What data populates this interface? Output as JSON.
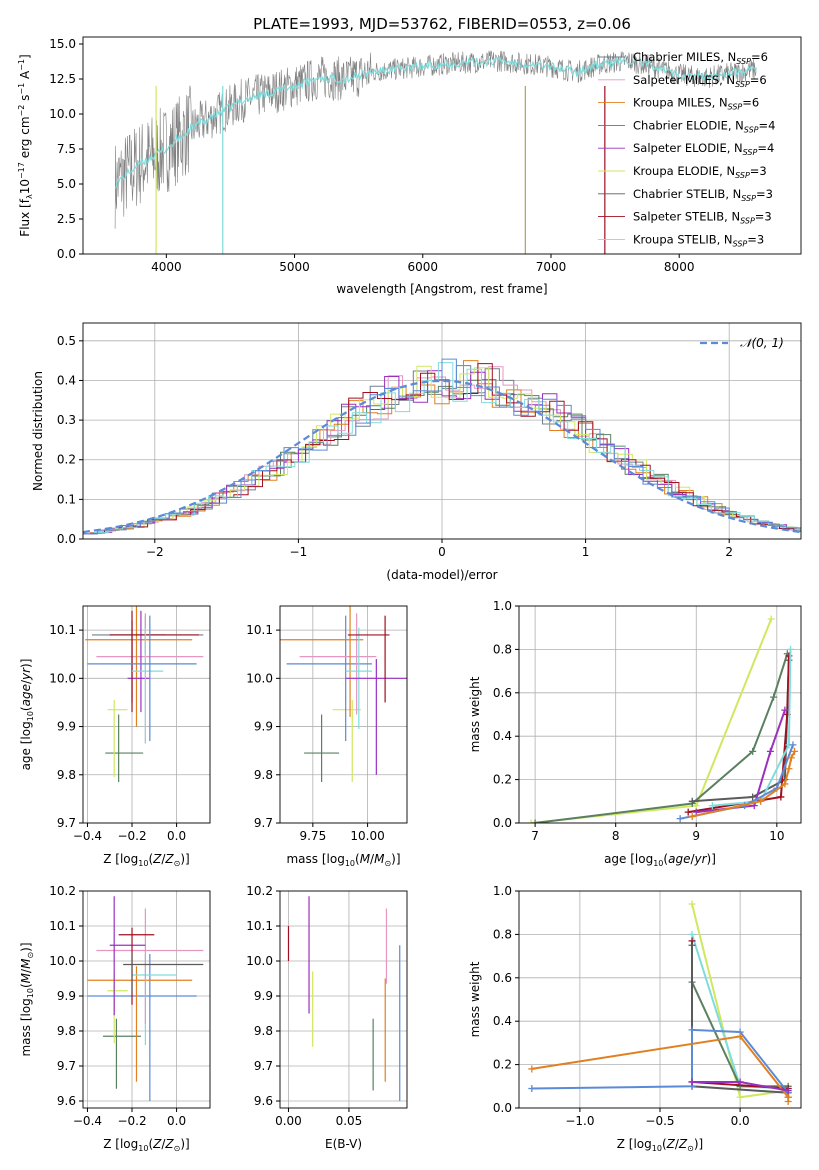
{
  "title": "PLATE=1993, MJD=53762, FIBERID=0553, z=0.06",
  "colors": {
    "Chabrier MILES": "#708090",
    "Salpeter MILES": "#e597c0",
    "Kroupa MILES": "#e08020",
    "Chabrier ELODIE": "#5a8060",
    "Salpeter ELODIE": "#9a30c0",
    "Kroupa ELODIE": "#cfe860",
    "Chabrier STELIB": "#5b5b5b",
    "Salpeter STELIB": "#a01020",
    "Kroupa STELIB": "#80dcdc",
    "spectrum": "#808080",
    "normal": "#5b8ad6"
  },
  "legend_spectrum": [
    {
      "label": "Chabrier MILES, N",
      "sub": "SSP",
      "tail": "=6",
      "color": "#708090"
    },
    {
      "label": "Salpeter MILES, N",
      "sub": "SSP",
      "tail": "=6",
      "color": "#e597c0"
    },
    {
      "label": "Kroupa MILES, N",
      "sub": "SSP",
      "tail": "=6",
      "color": "#e08020"
    },
    {
      "label": "Chabrier ELODIE, N",
      "sub": "SSP",
      "tail": "=4",
      "color": "#5a8060"
    },
    {
      "label": "Salpeter ELODIE, N",
      "sub": "SSP",
      "tail": "=4",
      "color": "#9a30c0"
    },
    {
      "label": "Kroupa ELODIE, N",
      "sub": "SSP",
      "tail": "=3",
      "color": "#cfe860"
    },
    {
      "label": "Chabrier STELIB, N",
      "sub": "SSP",
      "tail": "=3",
      "color": "#5b5b5b"
    },
    {
      "label": "Salpeter STELIB, N",
      "sub": "SSP",
      "tail": "=3",
      "color": "#a01020"
    },
    {
      "label": "Kroupa STELIB, N",
      "sub": "SSP",
      "tail": "=3",
      "color": "#80dcdc"
    }
  ],
  "chart_data": [
    {
      "id": "spectrum",
      "type": "line",
      "title": "PLATE=1993, MJD=53762, FIBERID=0553, z=0.06",
      "xlabel": "wavelength [Angstrom, rest frame]",
      "ylabel": "Flux [f",
      "ylabel_full": "Flux [f_λ 10^-17 erg cm^-2 s^-1 A^-1]",
      "xlim": [
        3350,
        8950
      ],
      "ylim": [
        0,
        15.5
      ],
      "xticks": [
        4000,
        5000,
        6000,
        7000,
        8000
      ],
      "yticks": [
        0.0,
        2.5,
        5.0,
        7.5,
        10.0,
        12.5,
        15.0
      ],
      "series": [
        {
          "name": "spectrum",
          "color": "#808080",
          "x": [
            3600,
            3800,
            4000,
            4200,
            4400,
            4600,
            4800,
            5000,
            5200,
            5400,
            5600,
            5800,
            6000,
            6200,
            6400,
            6600,
            6800,
            7000,
            7200,
            7400,
            7600,
            7800,
            8000,
            8200,
            8400,
            8600
          ],
          "y": [
            5.0,
            6.5,
            7.5,
            9.0,
            10.0,
            11.0,
            11.5,
            12.0,
            12.6,
            12.5,
            13.0,
            13.2,
            13.4,
            13.6,
            13.7,
            13.8,
            13.6,
            13.4,
            13.0,
            13.6,
            13.8,
            13.4,
            12.8,
            12.6,
            12.9,
            13.2
          ]
        }
      ]
    },
    {
      "id": "residuals",
      "type": "line",
      "xlabel": "(data-model)/error",
      "ylabel": "Normed distribution",
      "xlim": [
        -2.5,
        2.5
      ],
      "ylim": [
        0,
        0.545
      ],
      "xticks": [
        -2,
        -1,
        0,
        1,
        2
      ],
      "yticks": [
        0.0,
        0.1,
        0.2,
        0.3,
        0.4,
        0.5
      ],
      "series": [
        {
          "name": "N(0,1)",
          "legend": "𝒩(0, 1)",
          "type": "gaussian",
          "mu": 0,
          "sigma": 1
        }
      ]
    },
    {
      "id": "age_vs_Z",
      "type": "errorbar",
      "xlabel": "Z [log",
      "ylabel": "age  [log",
      "xlim": [
        -0.42,
        0.15
      ],
      "ylim": [
        9.7,
        10.15
      ],
      "xticks": [
        -0.4,
        -0.2,
        0.0
      ],
      "yticks": [
        9.7,
        9.8,
        9.9,
        10.0,
        10.1
      ],
      "points": [
        {
          "name": "Chabrier MILES",
          "x": -0.14,
          "xerr": [
            0.24,
            0.26
          ],
          "y": 10.09,
          "yerr": [
            0.04,
            0.04
          ]
        },
        {
          "name": "Salpeter MILES",
          "x": -0.14,
          "xerr": [
            0.22,
            0.26
          ],
          "y": 10.045,
          "yerr": [
            0.18,
            0.09
          ]
        },
        {
          "name": "Kroupa MILES",
          "x": -0.18,
          "xerr": [
            0.23,
            0.25
          ],
          "y": 10.08,
          "yerr": [
            0.18,
            0.07
          ]
        },
        {
          "name": "Chabrier ELODIE",
          "x": -0.26,
          "xerr": [
            0.06,
            0.11
          ],
          "y": 9.845,
          "yerr": [
            0.06,
            0.08
          ]
        },
        {
          "name": "Salpeter ELODIE",
          "x": -0.16,
          "xerr": [
            0.06,
            0.04
          ],
          "y": 10.0,
          "yerr": [
            0.07,
            0.14
          ]
        },
        {
          "name": "Kroupa ELODIE",
          "x": -0.28,
          "xerr": [
            0.03,
            0.06
          ],
          "y": 9.935,
          "yerr": [
            0.14,
            0.02
          ]
        },
        {
          "name": "Chabrier STELIB",
          "x": -0.2,
          "xerr": [
            0.1,
            0.15
          ],
          "y": 10.09,
          "yerr": [
            0.14,
            0.03
          ]
        },
        {
          "name": "Salpeter STELIB",
          "x": -0.2,
          "xerr": [
            0.1,
            0.3
          ],
          "y": 10.09,
          "yerr": [
            0.16,
            0.05
          ]
        },
        {
          "name": "Kroupa STELIB",
          "x": -0.14,
          "xerr": [
            0.06,
            0.08
          ],
          "y": 10.015,
          "yerr": [
            0.15,
            0.09
          ]
        },
        {
          "name": "blue",
          "x": -0.12,
          "xerr": [
            0.28,
            0.21
          ],
          "y": 10.03,
          "yerr": [
            0.16,
            0.1
          ]
        }
      ]
    },
    {
      "id": "age_vs_mass",
      "type": "errorbar",
      "xlabel": "mass [log",
      "ylabel": "",
      "xlim": [
        9.6,
        10.18
      ],
      "ylim": [
        9.7,
        10.15
      ],
      "xticks": [
        9.75,
        10.0
      ],
      "yticks": [
        9.7,
        9.8,
        9.9,
        10.0,
        10.1
      ],
      "points": [
        {
          "name": "Chabrier ELODIE",
          "x": 9.79,
          "xerr": [
            0.08,
            0.08
          ],
          "y": 9.845,
          "yerr": [
            0.06,
            0.08
          ]
        },
        {
          "name": "Kroupa ELODIE",
          "x": 9.93,
          "xerr": [
            0.09,
            0.04
          ],
          "y": 9.935,
          "yerr": [
            0.15,
            0.02
          ]
        },
        {
          "name": "blue",
          "x": 9.9,
          "xerr": [
            0.27,
            0.12
          ],
          "y": 10.03,
          "yerr": [
            0.16,
            0.1
          ]
        },
        {
          "name": "Salpeter MILES",
          "x": 9.95,
          "xerr": [
            0.26,
            0.09
          ],
          "y": 10.045,
          "yerr": [
            0.12,
            0.09
          ]
        },
        {
          "name": "Kroupa MILES",
          "x": 9.92,
          "xerr": [
            0.32,
            0.06
          ],
          "y": 10.08,
          "yerr": [
            0.16,
            0.07
          ]
        },
        {
          "name": "Kroupa STELIB",
          "x": 9.96,
          "xerr": [
            0.06,
            0.06
          ],
          "y": 10.015,
          "yerr": [
            0.12,
            0.09
          ]
        },
        {
          "name": "Salpeter ELODIE",
          "x": 10.04,
          "xerr": [
            0.14,
            0.16
          ],
          "y": 10.0,
          "yerr": [
            0.2,
            0.04
          ]
        },
        {
          "name": "Salpeter STELIB",
          "x": 10.08,
          "xerr": [
            0.17,
            0.02
          ],
          "y": 10.09,
          "yerr": [
            0.14,
            0.04
          ]
        }
      ]
    },
    {
      "id": "mass_weight_vs_age",
      "type": "line",
      "xlabel": "age  [log",
      "ylabel": "mass weight",
      "xlim": [
        6.8,
        10.3
      ],
      "ylim": [
        0,
        1.0
      ],
      "xticks": [
        7,
        8,
        9,
        10
      ],
      "yticks": [
        0.0,
        0.2,
        0.4,
        0.6,
        0.8,
        1.0
      ],
      "series": [
        {
          "name": "Kroupa ELODIE",
          "x": [
            6.95,
            9.0,
            9.93
          ],
          "y": [
            0.0,
            0.08,
            0.94
          ]
        },
        {
          "name": "Chabrier ELODIE",
          "x": [
            7.0,
            8.95,
            9.7,
            9.96,
            10.13
          ],
          "y": [
            0.0,
            0.09,
            0.33,
            0.58,
            0.78
          ]
        },
        {
          "name": "Chabrier STELIB",
          "x": [
            8.95,
            9.7,
            10.1,
            10.15
          ],
          "y": [
            0.1,
            0.12,
            0.2,
            0.75
          ]
        },
        {
          "name": "Salpeter STELIB",
          "x": [
            8.9,
            10.05,
            10.13,
            10.15
          ],
          "y": [
            0.05,
            0.12,
            0.5,
            0.77
          ]
        },
        {
          "name": "Salpeter ELODIE",
          "x": [
            9.0,
            9.72,
            9.92,
            10.1
          ],
          "y": [
            0.05,
            0.08,
            0.33,
            0.52
          ]
        },
        {
          "name": "Kroupa STELIB",
          "x": [
            9.2,
            9.8,
            10.15,
            10.17
          ],
          "y": [
            0.08,
            0.1,
            0.36,
            0.8
          ]
        },
        {
          "name": "blue",
          "x": [
            8.8,
            9.6,
            10.0,
            10.2
          ],
          "y": [
            0.02,
            0.08,
            0.16,
            0.36
          ]
        },
        {
          "name": "Kroupa MILES",
          "x": [
            8.95,
            9.8,
            10.1,
            10.15,
            10.18,
            10.22
          ],
          "y": [
            0.03,
            0.1,
            0.18,
            0.25,
            0.3,
            0.33
          ]
        }
      ]
    },
    {
      "id": "mass_vs_Z",
      "type": "errorbar",
      "xlabel": "Z [log",
      "ylabel": "mass [log",
      "xlim": [
        -0.42,
        0.15
      ],
      "ylim": [
        9.58,
        10.2
      ],
      "xticks": [
        -0.4,
        -0.2,
        0.0
      ],
      "yticks": [
        9.6,
        9.7,
        9.8,
        9.9,
        10.0,
        10.1,
        10.2
      ],
      "points": [
        {
          "name": "Chabrier ELODIE",
          "x": -0.27,
          "xerr": [
            0.06,
            0.11
          ],
          "y": 9.785,
          "yerr": [
            0.15,
            0.05
          ]
        },
        {
          "name": "Kroupa ELODIE",
          "x": -0.28,
          "xerr": [
            0.03,
            0.06
          ],
          "y": 9.915,
          "yerr": [
            0.15,
            0.05
          ]
        },
        {
          "name": "blue",
          "x": -0.12,
          "xerr": [
            0.28,
            0.21
          ],
          "y": 9.9,
          "yerr": [
            0.3,
            0.12
          ]
        },
        {
          "name": "Kroupa MILES",
          "x": -0.18,
          "xerr": [
            0.22,
            0.25
          ],
          "y": 9.945,
          "yerr": [
            0.29,
            0.04
          ]
        },
        {
          "name": "Kroupa STELIB",
          "x": -0.14,
          "xerr": [
            0.06,
            0.14
          ],
          "y": 9.96,
          "yerr": [
            0.2,
            0.06
          ]
        },
        {
          "name": "Salpeter MILES",
          "x": -0.14,
          "xerr": [
            0.22,
            0.26
          ],
          "y": 10.03,
          "yerr": [
            0.21,
            0.12
          ]
        },
        {
          "name": "Salpeter ELODIE",
          "x": -0.28,
          "xerr": [
            0.02,
            0.14
          ],
          "y": 10.045,
          "yerr": [
            0.2,
            0.14
          ]
        },
        {
          "name": "Salpeter STELIB",
          "x": -0.2,
          "xerr": [
            0.06,
            0.1
          ],
          "y": 10.075,
          "yerr": [
            0.2,
            0.02
          ]
        },
        {
          "name": "Chabrier STELIB",
          "x": -0.2,
          "xerr": [
            0.04,
            0.32
          ],
          "y": 9.99,
          "yerr": [
            0.08,
            0.03
          ]
        }
      ]
    },
    {
      "id": "mass_vs_EBV",
      "type": "errorbar",
      "xlabel": "E(B-V)",
      "ylabel": "",
      "xlim": [
        -0.007,
        0.098
      ],
      "ylim": [
        9.58,
        10.2
      ],
      "xticks": [
        0.0,
        0.05
      ],
      "yticks": [
        9.6,
        9.7,
        9.8,
        9.9,
        10.0,
        10.1,
        10.2
      ],
      "points": [
        {
          "name": "Salpeter STELIB",
          "x": 0.0,
          "y": 10.05,
          "yerr": [
            0.05,
            0.05
          ]
        },
        {
          "name": "Salpeter ELODIE",
          "x": 0.017,
          "y": 10.02,
          "yerr": [
            0.17,
            0.165
          ]
        },
        {
          "name": "Kroupa ELODIE",
          "x": 0.02,
          "y": 9.865,
          "yerr": [
            0.11,
            0.105
          ]
        },
        {
          "name": "Chabrier ELODIE",
          "x": 0.07,
          "y": 9.735,
          "yerr": [
            0.105,
            0.1
          ]
        },
        {
          "name": "Kroupa MILES",
          "x": 0.08,
          "y": 9.865,
          "yerr": [
            0.21,
            0.085
          ]
        },
        {
          "name": "Salpeter MILES",
          "x": 0.081,
          "y": 10.02,
          "yerr": [
            0.085,
            0.13
          ]
        },
        {
          "name": "blue",
          "x": 0.092,
          "y": 9.82,
          "yerr": [
            0.22,
            0.225
          ]
        }
      ]
    },
    {
      "id": "mass_weight_vs_Z",
      "type": "line",
      "xlabel": "Z [log",
      "ylabel": "mass weight",
      "xlim": [
        -1.38,
        0.38
      ],
      "ylim": [
        0,
        1.0
      ],
      "xticks": [
        -1.0,
        -0.5,
        0.0
      ],
      "yticks": [
        0.0,
        0.2,
        0.4,
        0.6,
        0.8,
        1.0
      ],
      "series": [
        {
          "name": "Kroupa ELODIE",
          "x": [
            -0.3,
            0.0,
            0.3
          ],
          "y": [
            0.94,
            0.05,
            0.08
          ]
        },
        {
          "name": "Kroupa STELIB",
          "x": [
            -0.3,
            0.0,
            0.3
          ],
          "y": [
            0.8,
            0.1,
            0.09
          ]
        },
        {
          "name": "Chabrier ELODIE",
          "x": [
            -0.3,
            0.0,
            0.3
          ],
          "y": [
            0.58,
            0.1,
            0.1
          ]
        },
        {
          "name": "Salpeter STELIB",
          "x": [
            -0.3,
            -0.3,
            0.3,
            0.3
          ],
          "y": [
            0.77,
            0.12,
            0.09,
            0.05
          ]
        },
        {
          "name": "Chabrier STELIB",
          "x": [
            -0.3,
            -0.3,
            0.3
          ],
          "y": [
            0.75,
            0.1,
            0.07
          ]
        },
        {
          "name": "blue",
          "x": [
            -1.3,
            -0.3,
            -0.3,
            0.0,
            0.3
          ],
          "y": [
            0.09,
            0.1,
            0.36,
            0.35,
            0.07
          ]
        },
        {
          "name": "Kroupa MILES",
          "x": [
            -1.3,
            0.0,
            0.3,
            0.3
          ],
          "y": [
            0.18,
            0.33,
            0.05,
            0.03
          ]
        },
        {
          "name": "Salpeter ELODIE",
          "x": [
            -0.3,
            0.0,
            0.3
          ],
          "y": [
            0.12,
            0.12,
            0.08
          ]
        }
      ]
    }
  ]
}
